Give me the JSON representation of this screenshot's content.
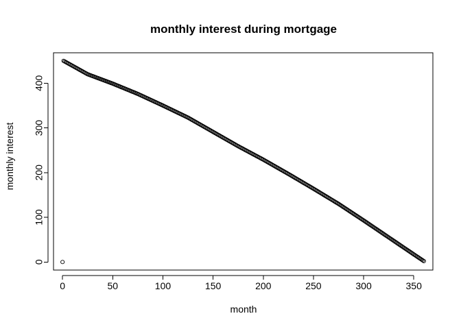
{
  "chart_data": {
    "type": "scatter",
    "title": "monthly interest during mortgage",
    "xlabel": "month",
    "ylabel": "monthly interest",
    "xlim": [
      -9,
      369
    ],
    "ylim": [
      -18,
      468
    ],
    "xticks": [
      0,
      50,
      100,
      150,
      200,
      250,
      300,
      350
    ],
    "yticks": [
      0,
      100,
      200,
      300,
      400
    ],
    "xtick_labels": [
      "0",
      "50",
      "100",
      "150",
      "200",
      "250",
      "300",
      "350"
    ],
    "ytick_labels": [
      "0",
      "100",
      "200",
      "300",
      "400"
    ],
    "grid": false,
    "legend": "none",
    "marker": "open-circle",
    "point_color": "#000000",
    "series": [
      {
        "start_point": [
          0,
          0
        ],
        "x_range": [
          1,
          360
        ],
        "y_first": 450,
        "y_last": 2,
        "shape": "decreasing, slightly concave",
        "sampled_points": [
          [
            1,
            450
          ],
          [
            25,
            420
          ],
          [
            50,
            399
          ],
          [
            75,
            376
          ],
          [
            100,
            350
          ],
          [
            125,
            323
          ],
          [
            150,
            291
          ],
          [
            175,
            259
          ],
          [
            200,
            229
          ],
          [
            225,
            197
          ],
          [
            250,
            164
          ],
          [
            275,
            130
          ],
          [
            300,
            93
          ],
          [
            325,
            55
          ],
          [
            350,
            17
          ],
          [
            360,
            2
          ]
        ]
      }
    ]
  }
}
